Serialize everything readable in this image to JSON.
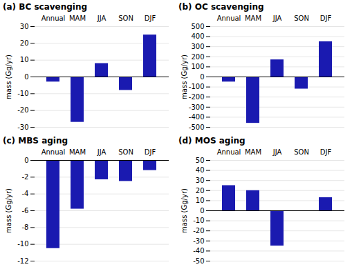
{
  "chart_data": [
    {
      "type": "bar",
      "title": "(a) BC scavenging",
      "categories": [
        "Annual",
        "MAM",
        "JJA",
        "SON",
        "DJF"
      ],
      "values": [
        -3,
        -27,
        8,
        -8,
        25
      ],
      "color": "#1a1ab0",
      "ylabel": "mass (Gg/yr)",
      "ylim": [
        -30,
        30
      ],
      "yticks": [
        -30,
        -20,
        -10,
        0,
        10,
        20,
        30
      ],
      "grid": true
    },
    {
      "type": "bar",
      "title": "(b) OC scavenging",
      "categories": [
        "Annual",
        "MAM",
        "JJA",
        "SON",
        "DJF"
      ],
      "values": [
        -50,
        -460,
        170,
        -120,
        350
      ],
      "color": "#1a1ab0",
      "ylabel": "mass (Gg/yr)",
      "ylim": [
        -500,
        500
      ],
      "yticks": [
        -500,
        -400,
        -300,
        -200,
        -100,
        0,
        100,
        200,
        300,
        400,
        500
      ],
      "grid": true
    },
    {
      "type": "bar",
      "title": "(c) MBS aging",
      "categories": [
        "Annual",
        "MAM",
        "JJA",
        "SON",
        "DJF"
      ],
      "values": [
        -10.5,
        -5.8,
        -2.3,
        -2.5,
        -1.2
      ],
      "color": "#1a1ab0",
      "ylabel": "mass (Gg/yr)",
      "ylim": [
        -12,
        0
      ],
      "yticks": [
        -12,
        -10,
        -8,
        -6,
        -4,
        -2,
        0
      ],
      "grid": true
    },
    {
      "type": "bar",
      "title": "(d) MOS aging",
      "categories": [
        "Annual",
        "MAM",
        "JJA",
        "SON",
        "DJF"
      ],
      "values": [
        25,
        20,
        -35,
        0,
        13
      ],
      "color": "#1a1ab0",
      "ylabel": "mass (Gg/yr)",
      "ylim": [
        -50,
        50
      ],
      "yticks": [
        -50,
        -40,
        -30,
        -20,
        -10,
        0,
        10,
        20,
        30,
        40,
        50
      ],
      "grid": true
    }
  ]
}
